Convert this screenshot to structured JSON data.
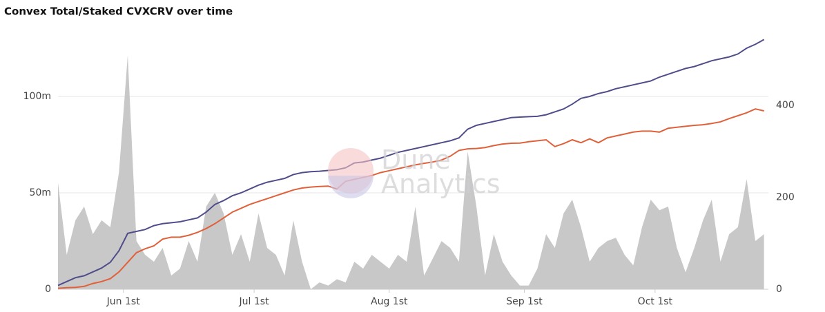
{
  "chart_data": {
    "type": "line",
    "title": "Convex Total/Staked CVXCRV over time",
    "watermark": [
      "Dune",
      "Analytics"
    ],
    "x": [
      -15,
      -13,
      -11,
      -9,
      -7,
      -5,
      -3,
      -1,
      1,
      3,
      5,
      7,
      9,
      11,
      13,
      15,
      17,
      19,
      21,
      23,
      25,
      27,
      29,
      31,
      33,
      35,
      37,
      39,
      41,
      43,
      45,
      47,
      49,
      51,
      53,
      55,
      57,
      59,
      61,
      63,
      65,
      67,
      69,
      71,
      73,
      75,
      77,
      79,
      81,
      83,
      85,
      87,
      89,
      91,
      93,
      95,
      97,
      99,
      101,
      103,
      105,
      107,
      109,
      111,
      113,
      115,
      117,
      119,
      121,
      123,
      125,
      127,
      129,
      131,
      133,
      135,
      137,
      139,
      141,
      143,
      145,
      147
    ],
    "xlim": [
      -15,
      148
    ],
    "xticks": [
      {
        "value": 0,
        "label": "Jun 1st"
      },
      {
        "value": 30,
        "label": "Jul 1st"
      },
      {
        "value": 61,
        "label": "Aug 1st"
      },
      {
        "value": 92,
        "label": "Sep 1st"
      },
      {
        "value": 122,
        "label": "Oct 1st"
      }
    ],
    "ylim": [
      0,
      132000000
    ],
    "yticks": [
      0,
      {
        "value": 50000000,
        "label": "50m"
      },
      {
        "value": 100000000,
        "label": "100m"
      }
    ],
    "y2lim": [
      0,
      554
    ],
    "y2ticks": [
      0,
      200,
      400
    ],
    "grid": true,
    "series": [
      {
        "type": "area",
        "axis": "y2",
        "color": "#c8c8c8",
        "values": [
          232,
          75,
          150,
          180,
          120,
          150,
          135,
          255,
          509,
          105,
          75,
          60,
          90,
          30,
          45,
          105,
          60,
          180,
          210,
          165,
          75,
          120,
          60,
          165,
          90,
          75,
          30,
          150,
          60,
          0,
          15,
          8,
          22,
          15,
          60,
          45,
          75,
          60,
          45,
          75,
          60,
          180,
          30,
          67,
          105,
          90,
          60,
          300,
          180,
          30,
          120,
          60,
          30,
          8,
          8,
          45,
          120,
          90,
          165,
          195,
          135,
          60,
          90,
          105,
          112,
          75,
          52,
          135,
          195,
          172,
          180,
          90,
          37,
          90,
          150,
          195,
          60,
          120,
          135,
          240,
          105,
          120
        ]
      },
      {
        "type": "line",
        "color": "#4f4c8a",
        "values": [
          2000000,
          4000000,
          6000000,
          7000000,
          9000000,
          11000000,
          14000000,
          20000000,
          29000000,
          30000000,
          31000000,
          33000000,
          34000000,
          34500000,
          35000000,
          36000000,
          37000000,
          40000000,
          44000000,
          46000000,
          48500000,
          50000000,
          52000000,
          54000000,
          55500000,
          56500000,
          57500000,
          59500000,
          60500000,
          61000000,
          61200000,
          61600000,
          62000000,
          63000000,
          65500000,
          66000000,
          67000000,
          68000000,
          69500000,
          71000000,
          72000000,
          73000000,
          74000000,
          75000000,
          76000000,
          77000000,
          78500000,
          83000000,
          85000000,
          86000000,
          87000000,
          88000000,
          89000000,
          89300000,
          89500000,
          89700000,
          90500000,
          92000000,
          93500000,
          96000000,
          99000000,
          100000000,
          101500000,
          102500000,
          104000000,
          105000000,
          106000000,
          107000000,
          108000000,
          110000000,
          111500000,
          113000000,
          114500000,
          115500000,
          117000000,
          118500000,
          119500000,
          120500000,
          122000000,
          125000000,
          127000000,
          129500000
        ]
      },
      {
        "type": "line",
        "color": "#e0603a",
        "values": [
          500000,
          800000,
          1000000,
          1500000,
          3000000,
          4000000,
          5500000,
          9000000,
          14000000,
          19000000,
          21000000,
          22500000,
          26000000,
          27000000,
          27000000,
          28000000,
          29500000,
          31500000,
          34000000,
          37000000,
          40000000,
          42000000,
          44000000,
          45500000,
          47000000,
          48500000,
          50000000,
          51500000,
          52500000,
          53000000,
          53300000,
          53500000,
          52000000,
          56000000,
          57000000,
          58000000,
          59000000,
          60500000,
          61500000,
          62500000,
          63500000,
          64500000,
          65300000,
          66000000,
          67000000,
          69000000,
          72000000,
          72800000,
          73000000,
          73500000,
          74500000,
          75300000,
          75700000,
          75800000,
          76500000,
          77000000,
          77500000,
          74000000,
          75500000,
          77500000,
          76000000,
          78000000,
          76000000,
          78500000,
          79500000,
          80500000,
          81500000,
          82000000,
          82000000,
          81500000,
          83500000,
          84000000,
          84500000,
          85000000,
          85300000,
          86000000,
          86800000,
          88500000,
          90000000,
          91500000,
          93500000,
          92500000
        ]
      }
    ]
  }
}
